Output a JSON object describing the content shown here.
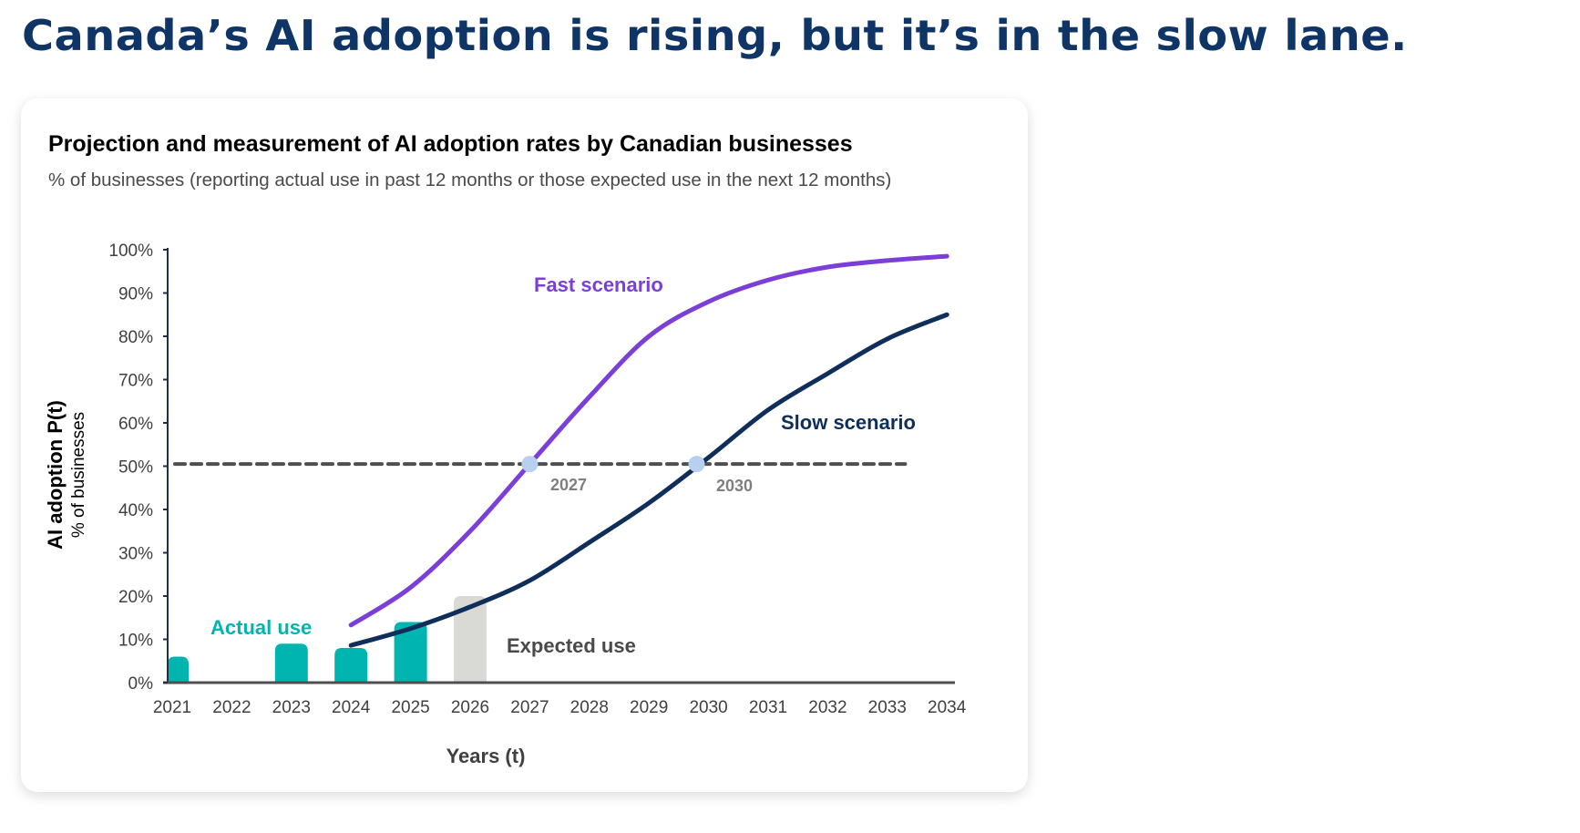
{
  "headline": "Canada’s AI adoption is rising, but it’s in the slow lane.",
  "colors": {
    "headline": "#0f3466",
    "actual": "#00b4b0",
    "expected": "#d9d9d6",
    "fast": "#7b3fd8",
    "slow": "#0f2e5a",
    "threshold": "#4f4f4f",
    "crossing_dot": "#b8d0f0"
  },
  "chart_data": {
    "type": "bar+line",
    "title": "Projection and measurement of AI adoption rates by Canadian businesses",
    "subtitle": "% of businesses (reporting actual use in past 12 months or those expected use in the next 12 months)",
    "xlabel": "Years (t)",
    "ylabel": "AI adoption P(t)",
    "ylabel_sub": "% of businesses",
    "ylim": [
      0,
      100
    ],
    "yticks": [
      "0%",
      "10%",
      "20%",
      "30%",
      "40%",
      "50%",
      "60%",
      "70%",
      "80%",
      "90%",
      "100%"
    ],
    "categories": [
      "2021",
      "2022",
      "2023",
      "2024",
      "2025",
      "2026",
      "2027",
      "2028",
      "2029",
      "2030",
      "2031",
      "2032",
      "2033",
      "2034"
    ],
    "grid": false,
    "bars": [
      {
        "name": "Actual use",
        "year": 2021,
        "value": 6
      },
      {
        "name": "Actual use",
        "year": 2023,
        "value": 9
      },
      {
        "name": "Actual use",
        "year": 2024,
        "value": 8
      },
      {
        "name": "Actual use",
        "year": 2025,
        "value": 14
      },
      {
        "name": "Expected use",
        "year": 2026,
        "value": 20
      }
    ],
    "series": [
      {
        "name": "Fast scenario",
        "x": [
          2024,
          2025,
          2026,
          2027,
          2028,
          2029,
          2030,
          2031,
          2032,
          2033,
          2034
        ],
        "values": [
          13.3,
          22,
          35,
          50.5,
          66,
          80,
          88,
          93,
          96,
          97.5,
          98.5
        ]
      },
      {
        "name": "Slow scenario",
        "x": [
          2024,
          2025,
          2026,
          2027,
          2028,
          2029,
          2030,
          2031,
          2032,
          2033,
          2034
        ],
        "values": [
          8.6,
          12.5,
          17.5,
          23.6,
          32.4,
          41.5,
          52,
          63,
          71.4,
          79.4,
          85
        ]
      }
    ],
    "threshold": {
      "value": 50.5,
      "x_start": 2021,
      "x_end": 2033.3
    },
    "annotations": [
      {
        "text": "Actual use",
        "series": "actual"
      },
      {
        "text": "Expected use",
        "series": "expected"
      },
      {
        "text": "Fast scenario",
        "series": "fast"
      },
      {
        "text": "Slow scenario",
        "series": "slow"
      },
      {
        "text": "2027",
        "crossing_year": 2027,
        "value": 50.5,
        "series": "fast"
      },
      {
        "text": "2030",
        "crossing_year": 2029.8,
        "value": 50.5,
        "series": "slow"
      }
    ]
  }
}
